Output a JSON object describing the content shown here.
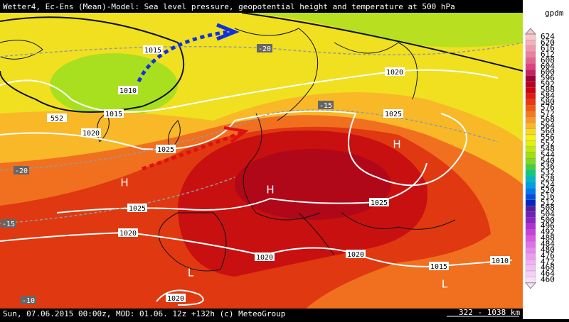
{
  "header": {
    "title": "Wetter4, Ec-Ens (Mean)-Model: Sea level pressure, geopotential height and temperature at 500 hPa"
  },
  "footer": {
    "text": "Sun, 07.06.2015 00:00z, MOD: 01.06. 12z +132h (c) MeteoGroup",
    "scale": "322 - 1038 km"
  },
  "legend": {
    "unit": "gpdm",
    "levels": [
      624,
      620,
      616,
      612,
      608,
      604,
      600,
      596,
      592,
      588,
      584,
      580,
      576,
      572,
      568,
      564,
      560,
      556,
      552,
      548,
      544,
      540,
      536,
      532,
      528,
      524,
      520,
      516,
      512,
      508,
      504,
      500,
      496,
      492,
      488,
      484,
      480,
      476,
      472,
      468,
      464,
      460
    ],
    "colors": [
      "#f7c8cc",
      "#f4b0bc",
      "#f098ac",
      "#ec80a0",
      "#e86090",
      "#e04080",
      "#c82060",
      "#a00038",
      "#b80020",
      "#d00010",
      "#e01810",
      "#e83810",
      "#f05810",
      "#f47820",
      "#f89828",
      "#f8b828",
      "#f8d820",
      "#f8f010",
      "#e0f010",
      "#c0e810",
      "#a0e010",
      "#80d820",
      "#40d040",
      "#10c880",
      "#00b8c0",
      "#00a0e0",
      "#0078f0",
      "#0050e0",
      "#0028c0",
      "#5020a0",
      "#7020b8",
      "#9020c8",
      "#b030d0",
      "#c840d8",
      "#d858e0",
      "#e070e8",
      "#e888ec",
      "#ec9cf0",
      "#f0b0f2",
      "#f2c0f4",
      "#f4d0f6",
      "#f8e0f8"
    ]
  },
  "map": {
    "labels": [
      1015,
      1010,
      1015,
      552,
      1020,
      1025,
      1020,
      1025,
      1025,
      1020,
      1025,
      1020,
      1020,
      1015,
      1010,
      1020
    ],
    "temps": [
      -20,
      -15,
      -20,
      -15,
      -10
    ],
    "highs": [
      "H",
      "H"
    ],
    "lows": [
      "L",
      "L"
    ],
    "center": "H"
  }
}
